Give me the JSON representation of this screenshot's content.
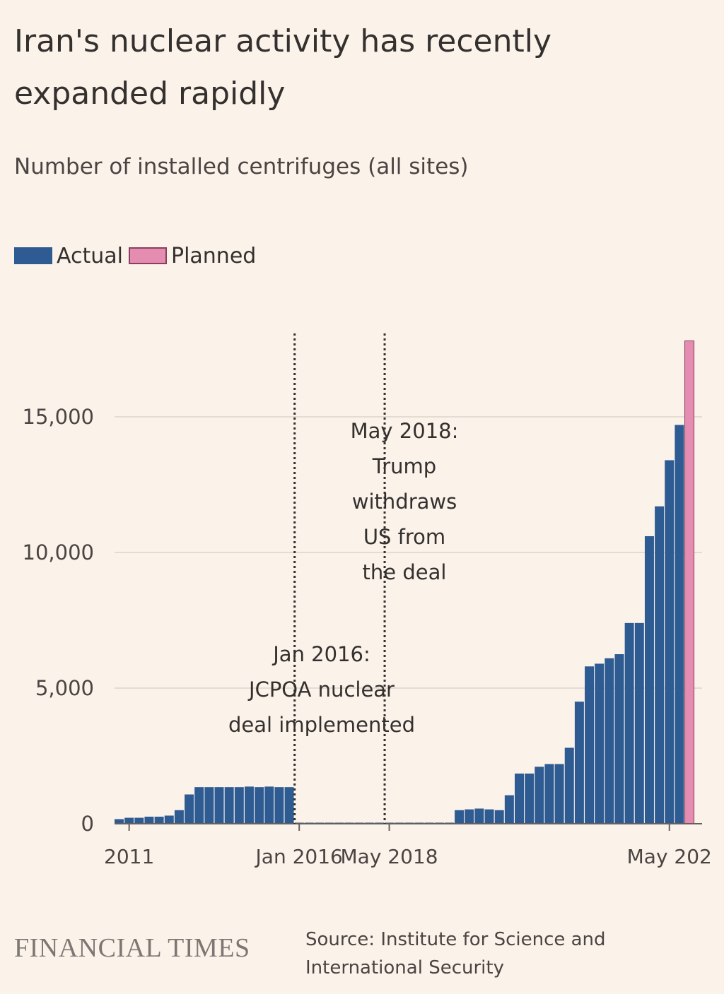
{
  "header": {
    "title": "Iran's nuclear activity has recently expanded rapidly",
    "subtitle": "Number of installed centrifuges (all sites)"
  },
  "legend": [
    {
      "label": "Actual",
      "color": "#2e5b92"
    },
    {
      "label": "Planned",
      "color": "#e58db0"
    }
  ],
  "chart_data": {
    "type": "bar",
    "title": "Iran's nuclear activity has recently expanded rapidly",
    "subtitle": "Number of installed centrifuges (all sites)",
    "ylim": [
      0,
      18500
    ],
    "yticks": [
      {
        "value": 0,
        "label": "0"
      },
      {
        "value": 5000,
        "label": "5,000"
      },
      {
        "value": 10000,
        "label": "10,000"
      },
      {
        "value": 15000,
        "label": "15,000"
      }
    ],
    "xticks": [
      {
        "index": 1,
        "label": "2011"
      },
      {
        "index": 18,
        "label": "Jan 2016"
      },
      {
        "index": 27,
        "label": "May 2018"
      },
      {
        "index": 55,
        "label": "May 202"
      }
    ],
    "grid": true,
    "legend_position": "top-left",
    "series": [
      {
        "name": "Actual",
        "color": "#2e5b92",
        "values": [
          170,
          220,
          220,
          260,
          260,
          300,
          500,
          1080,
          1350,
          1350,
          1350,
          1350,
          1350,
          1370,
          1350,
          1370,
          1350,
          1350,
          40,
          40,
          40,
          40,
          40,
          40,
          40,
          40,
          40,
          40,
          40,
          40,
          40,
          40,
          40,
          40,
          500,
          530,
          560,
          530,
          500,
          1050,
          1850,
          1850,
          2100,
          2200,
          2200,
          2800,
          4500,
          5800,
          5900,
          6100,
          6250,
          7400,
          7400,
          10600,
          11700,
          13400,
          14700,
          0
        ]
      },
      {
        "name": "Planned",
        "color": "#e58db0",
        "values": [
          0,
          0,
          0,
          0,
          0,
          0,
          0,
          0,
          0,
          0,
          0,
          0,
          0,
          0,
          0,
          0,
          0,
          0,
          0,
          0,
          0,
          0,
          0,
          0,
          0,
          0,
          0,
          0,
          0,
          0,
          0,
          0,
          0,
          0,
          0,
          0,
          0,
          0,
          0,
          0,
          0,
          0,
          0,
          0,
          0,
          0,
          0,
          0,
          0,
          0,
          0,
          0,
          0,
          0,
          0,
          0,
          0,
          17800
        ]
      }
    ],
    "annotations": [
      {
        "id": "jan2016",
        "index": 18,
        "lines": [
          "Jan 2016:",
          "JCPOA nuclear",
          "deal implemented"
        ]
      },
      {
        "id": "may2018",
        "index": 27,
        "lines": [
          "May 2018:",
          "Trump",
          "withdraws",
          "US from",
          "the deal"
        ]
      }
    ]
  },
  "footer": {
    "brand": "FINANCIAL TIMES",
    "source": "Source: Institute for Science and International Security"
  }
}
